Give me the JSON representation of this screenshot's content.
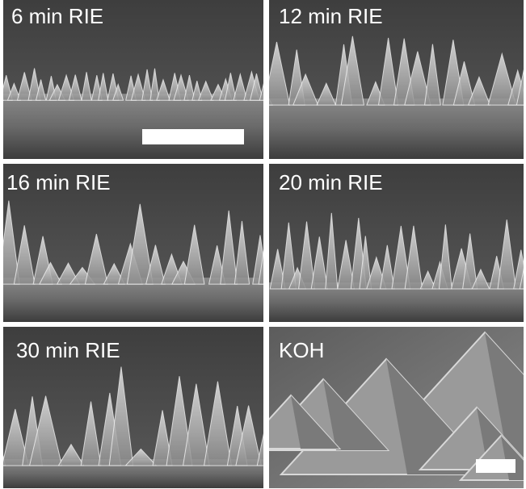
{
  "panels": [
    {
      "label": "6 min RIE"
    },
    {
      "label": "12 min RIE"
    },
    {
      "label": "16 min RIE"
    },
    {
      "label": "20 min RIE"
    },
    {
      "label": "30 min RIE"
    },
    {
      "label": "KOH"
    }
  ]
}
